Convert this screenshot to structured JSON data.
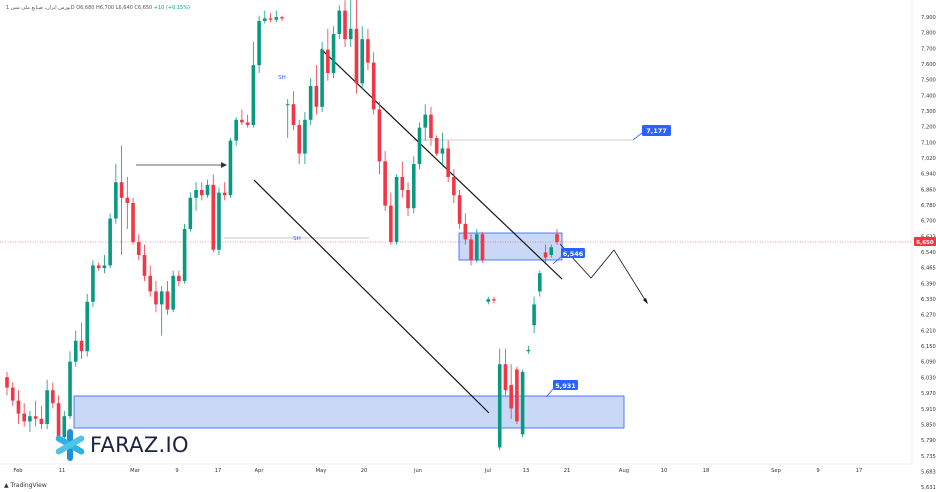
{
  "header": {
    "title": "بورس ایران، صنایع ملی مس 1D",
    "open": "O6,680",
    "high": "H6,700",
    "low": "L6,640",
    "close": "C6,650",
    "change": "+10 (+0.15%)"
  },
  "brand": {
    "name": "FARAZ.IO",
    "icon": "asterisk-logo-icon"
  },
  "footer": {
    "platform": "TradingView"
  },
  "colors": {
    "up": "#089981",
    "down": "#f23645",
    "zone_fill": "#b3c8f5",
    "zone_stroke": "#2962ff",
    "label_bg": "#2962ff",
    "price_tag": "#f23645"
  },
  "chart_data": {
    "type": "candlestick",
    "y_axis_ticks": [
      "7,900",
      "7,800",
      "7,700",
      "7,600",
      "7,500",
      "7,400",
      "7,300",
      "7,200",
      "7,100",
      "7,020",
      "6,940",
      "6,860",
      "6,780",
      "6,700",
      "6,623",
      "6,540",
      "6,465",
      "6,390",
      "6,330",
      "6,270",
      "6,210",
      "6,150",
      "6,090",
      "6,030",
      "5,970",
      "5,910",
      "5,850",
      "5,790",
      "5,735",
      "5,683",
      "5,631"
    ],
    "x_axis_labels": [
      "Feb",
      "11",
      "Mar",
      "9",
      "17",
      "Apr",
      "May",
      "20",
      "Jun",
      "Jul",
      "13",
      "21",
      "Aug",
      "10",
      "18",
      "Sep",
      "9",
      "17"
    ],
    "current_price": "6,650",
    "annotations": {
      "target_high": "7,177",
      "level_mid": "6,546",
      "support": "5,931",
      "sh_label": "SH"
    },
    "candles": [
      {
        "o": 6130,
        "h": 6150,
        "l": 6060,
        "c": 6090
      },
      {
        "o": 6090,
        "h": 6110,
        "l": 6020,
        "c": 6040
      },
      {
        "o": 6040,
        "h": 6080,
        "l": 5950,
        "c": 5990
      },
      {
        "o": 5990,
        "h": 6030,
        "l": 5940,
        "c": 5960
      },
      {
        "o": 5960,
        "h": 6000,
        "l": 5920,
        "c": 5980
      },
      {
        "o": 5980,
        "h": 6040,
        "l": 5940,
        "c": 5970
      },
      {
        "o": 5970,
        "h": 6020,
        "l": 5930,
        "c": 5950
      },
      {
        "o": 5950,
        "h": 6120,
        "l": 5930,
        "c": 6080
      },
      {
        "o": 6080,
        "h": 6110,
        "l": 6010,
        "c": 6030
      },
      {
        "o": 6030,
        "h": 6060,
        "l": 5880,
        "c": 5900
      },
      {
        "o": 5900,
        "h": 6000,
        "l": 5880,
        "c": 5980
      },
      {
        "o": 5980,
        "h": 6230,
        "l": 5970,
        "c": 6190
      },
      {
        "o": 6190,
        "h": 6310,
        "l": 6170,
        "c": 6270
      },
      {
        "o": 6270,
        "h": 6340,
        "l": 6200,
        "c": 6230
      },
      {
        "o": 6230,
        "h": 6450,
        "l": 6210,
        "c": 6420
      },
      {
        "o": 6420,
        "h": 6580,
        "l": 6400,
        "c": 6560
      },
      {
        "o": 6560,
        "h": 6570,
        "l": 6540,
        "c": 6550
      },
      {
        "o": 6550,
        "h": 6600,
        "l": 6530,
        "c": 6560
      },
      {
        "o": 6560,
        "h": 6760,
        "l": 6550,
        "c": 6740
      },
      {
        "o": 6740,
        "h": 6950,
        "l": 6720,
        "c": 6880
      },
      {
        "o": 6880,
        "h": 7020,
        "l": 6600,
        "c": 6820
      },
      {
        "o": 6820,
        "h": 6900,
        "l": 6700,
        "c": 6800
      },
      {
        "o": 6800,
        "h": 6820,
        "l": 6640,
        "c": 6650
      },
      {
        "o": 6650,
        "h": 6680,
        "l": 6580,
        "c": 6600
      },
      {
        "o": 6600,
        "h": 6640,
        "l": 6500,
        "c": 6520
      },
      {
        "o": 6520,
        "h": 6560,
        "l": 6440,
        "c": 6460
      },
      {
        "o": 6460,
        "h": 6500,
        "l": 6380,
        "c": 6410
      },
      {
        "o": 6410,
        "h": 6480,
        "l": 6290,
        "c": 6460
      },
      {
        "o": 6460,
        "h": 6500,
        "l": 6370,
        "c": 6390
      },
      {
        "o": 6390,
        "h": 6540,
        "l": 6380,
        "c": 6520
      },
      {
        "o": 6520,
        "h": 6540,
        "l": 6480,
        "c": 6500
      },
      {
        "o": 6500,
        "h": 6720,
        "l": 6490,
        "c": 6700
      },
      {
        "o": 6700,
        "h": 6840,
        "l": 6690,
        "c": 6820
      },
      {
        "o": 6820,
        "h": 6880,
        "l": 6770,
        "c": 6850
      },
      {
        "o": 6850,
        "h": 6880,
        "l": 6810,
        "c": 6830
      },
      {
        "o": 6830,
        "h": 6890,
        "l": 6820,
        "c": 6870
      },
      {
        "o": 6870,
        "h": 6910,
        "l": 6610,
        "c": 6620
      },
      {
        "o": 6620,
        "h": 6860,
        "l": 6600,
        "c": 6840
      },
      {
        "o": 6840,
        "h": 6880,
        "l": 6810,
        "c": 6830
      },
      {
        "o": 6830,
        "h": 7050,
        "l": 6820,
        "c": 7040
      },
      {
        "o": 7040,
        "h": 7130,
        "l": 7020,
        "c": 7120
      },
      {
        "o": 7120,
        "h": 7160,
        "l": 7100,
        "c": 7110
      },
      {
        "o": 7110,
        "h": 7140,
        "l": 7090,
        "c": 7100
      },
      {
        "o": 7100,
        "h": 7420,
        "l": 7090,
        "c": 7330
      },
      {
        "o": 7330,
        "h": 7520,
        "l": 7300,
        "c": 7500
      },
      {
        "o": 7500,
        "h": 7540,
        "l": 7490,
        "c": 7510
      },
      {
        "o": 7510,
        "h": 7530,
        "l": 7495,
        "c": 7505
      },
      {
        "o": 7505,
        "h": 7540,
        "l": 7495,
        "c": 7515
      },
      {
        "o": 7515,
        "h": 7520,
        "l": 7500,
        "c": 7510
      },
      {
        "o": 7180,
        "h": 7200,
        "l": 7050,
        "c": 7180
      },
      {
        "o": 7180,
        "h": 7230,
        "l": 7080,
        "c": 7100
      },
      {
        "o": 7100,
        "h": 7120,
        "l": 6950,
        "c": 6990
      },
      {
        "o": 6990,
        "h": 7150,
        "l": 6950,
        "c": 7120
      },
      {
        "o": 7120,
        "h": 7280,
        "l": 7100,
        "c": 7250
      },
      {
        "o": 7250,
        "h": 7330,
        "l": 7140,
        "c": 7170
      },
      {
        "o": 7170,
        "h": 7420,
        "l": 7150,
        "c": 7390
      },
      {
        "o": 7390,
        "h": 7470,
        "l": 7270,
        "c": 7300
      },
      {
        "o": 7300,
        "h": 7480,
        "l": 7280,
        "c": 7450
      },
      {
        "o": 7450,
        "h": 7560,
        "l": 7430,
        "c": 7540
      },
      {
        "o": 7540,
        "h": 7580,
        "l": 7400,
        "c": 7430
      },
      {
        "o": 7430,
        "h": 7700,
        "l": 7400,
        "c": 7470
      },
      {
        "o": 7470,
        "h": 7580,
        "l": 7220,
        "c": 7260
      },
      {
        "o": 7260,
        "h": 7480,
        "l": 7240,
        "c": 7430
      },
      {
        "o": 7430,
        "h": 7470,
        "l": 7310,
        "c": 7340
      },
      {
        "o": 7340,
        "h": 7380,
        "l": 7140,
        "c": 7160
      },
      {
        "o": 7160,
        "h": 7190,
        "l": 6910,
        "c": 6960
      },
      {
        "o": 6960,
        "h": 7000,
        "l": 6770,
        "c": 6790
      },
      {
        "o": 6790,
        "h": 6840,
        "l": 6640,
        "c": 6650
      },
      {
        "o": 6650,
        "h": 6910,
        "l": 6640,
        "c": 6900
      },
      {
        "o": 6900,
        "h": 6960,
        "l": 6820,
        "c": 6850
      },
      {
        "o": 6850,
        "h": 6880,
        "l": 6750,
        "c": 6780
      },
      {
        "o": 6780,
        "h": 6980,
        "l": 6760,
        "c": 6950
      },
      {
        "o": 6950,
        "h": 7110,
        "l": 6930,
        "c": 7090
      },
      {
        "o": 7090,
        "h": 7180,
        "l": 7040,
        "c": 7140
      },
      {
        "o": 7140,
        "h": 7170,
        "l": 7020,
        "c": 7050
      },
      {
        "o": 7050,
        "h": 7060,
        "l": 6980,
        "c": 6990
      },
      {
        "o": 6990,
        "h": 7070,
        "l": 6940,
        "c": 7010
      },
      {
        "o": 7010,
        "h": 7040,
        "l": 6880,
        "c": 6900
      },
      {
        "o": 6900,
        "h": 6930,
        "l": 6800,
        "c": 6830
      },
      {
        "o": 6830,
        "h": 6850,
        "l": 6700,
        "c": 6720
      },
      {
        "o": 6720,
        "h": 6760,
        "l": 6640,
        "c": 6660
      },
      {
        "o": 6660,
        "h": 6680,
        "l": 6560,
        "c": 6580
      },
      {
        "o": 6580,
        "h": 6700,
        "l": 6570,
        "c": 6680
      },
      {
        "o": 6680,
        "h": 6690,
        "l": 6570,
        "c": 6580
      },
      {
        "o": 6420,
        "h": 6440,
        "l": 6410,
        "c": 6430
      },
      {
        "o": 6430,
        "h": 6440,
        "l": 6415,
        "c": 6425
      },
      {
        "o": 5860,
        "h": 6240,
        "l": 5850,
        "c": 6180
      },
      {
        "o": 6180,
        "h": 6240,
        "l": 6060,
        "c": 6080
      },
      {
        "o": 6100,
        "h": 6180,
        "l": 5970,
        "c": 6010
      },
      {
        "o": 6160,
        "h": 6170,
        "l": 5950,
        "c": 5960
      },
      {
        "o": 5910,
        "h": 6160,
        "l": 5900,
        "c": 6150
      },
      {
        "o": 6230,
        "h": 6250,
        "l": 6220,
        "c": 6235
      },
      {
        "o": 6330,
        "h": 6440,
        "l": 6300,
        "c": 6410
      },
      {
        "o": 6460,
        "h": 6540,
        "l": 6440,
        "c": 6530
      },
      {
        "o": 6610,
        "h": 6640,
        "l": 6570,
        "c": 6590
      },
      {
        "o": 6600,
        "h": 6640,
        "l": 6590,
        "c": 6630
      },
      {
        "o": 6680,
        "h": 6700,
        "l": 6640,
        "c": 6650
      }
    ]
  }
}
